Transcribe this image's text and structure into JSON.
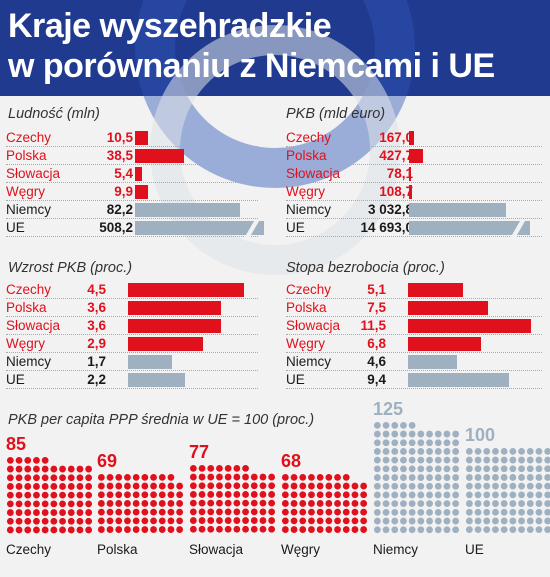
{
  "title_line1": "Kraje wyszehradzkie",
  "title_line2": "w porównaniu z Niemcami i UE",
  "colors": {
    "highlight": "#e0101c",
    "reference": "#9fb0c0",
    "header": "#1f3a8f"
  },
  "chart_data": [
    {
      "type": "bar",
      "title": "Ludność (mln)",
      "categories": [
        "Czechy",
        "Polska",
        "Słowacja",
        "Węgry",
        "Niemcy",
        "UE"
      ],
      "values": [
        10.5,
        38.5,
        5.4,
        9.9,
        82.2,
        508.2
      ],
      "labels": [
        "10,5",
        "38,5",
        "5,4",
        "9,9",
        "82,2",
        "508,2"
      ],
      "highlighted": [
        true,
        true,
        true,
        true,
        false,
        false
      ],
      "max_value": 82.2,
      "axis_break_on_max_bar": true,
      "axis_break_categories": [
        "UE"
      ]
    },
    {
      "type": "bar",
      "title": "PKB (mld euro)",
      "categories": [
        "Czechy",
        "Polska",
        "Słowacja",
        "Węgry",
        "Niemcy",
        "UE"
      ],
      "values": [
        167.0,
        427.7,
        78.1,
        108.7,
        3032.8,
        14693.0
      ],
      "labels": [
        "167,0",
        "427,7",
        "78,1",
        "108,7",
        "3 032,8",
        "14 693,0"
      ],
      "highlighted": [
        true,
        true,
        true,
        true,
        false,
        false
      ],
      "max_value": 3032.8,
      "axis_break_on_max_bar": true,
      "axis_break_categories": [
        "UE"
      ]
    },
    {
      "type": "bar",
      "title": "Wzrost PKB (proc.)",
      "categories": [
        "Czechy",
        "Polska",
        "Słowacja",
        "Węgry",
        "Niemcy",
        "UE"
      ],
      "values": [
        4.5,
        3.6,
        3.6,
        2.9,
        1.7,
        2.2
      ],
      "labels": [
        "4,5",
        "3,6",
        "3,6",
        "2,9",
        "1,7",
        "2,2"
      ],
      "highlighted": [
        true,
        true,
        true,
        true,
        false,
        false
      ],
      "max_value": 4.5,
      "axis_break_on_max_bar": false,
      "axis_break_categories": []
    },
    {
      "type": "bar",
      "title": "Stopa bezrobocia (proc.)",
      "categories": [
        "Czechy",
        "Polska",
        "Słowacja",
        "Węgry",
        "Niemcy",
        "UE"
      ],
      "values": [
        5.1,
        7.5,
        11.5,
        6.8,
        4.6,
        9.4
      ],
      "labels": [
        "5,1",
        "7,5",
        "11,5",
        "6,8",
        "4,6",
        "9,4"
      ],
      "highlighted": [
        true,
        true,
        true,
        true,
        false,
        false
      ],
      "max_value": 11.5,
      "axis_break_on_max_bar": false,
      "axis_break_categories": []
    },
    {
      "type": "dot-matrix",
      "title": "PKB per capita PPP średnia w UE = 100 (proc.)",
      "categories": [
        "Czechy",
        "Polska",
        "Słowacja",
        "Węgry",
        "Niemcy",
        "UE"
      ],
      "values": [
        85,
        69,
        77,
        68,
        125,
        100
      ],
      "highlighted": [
        true,
        true,
        true,
        true,
        false,
        false
      ]
    }
  ]
}
